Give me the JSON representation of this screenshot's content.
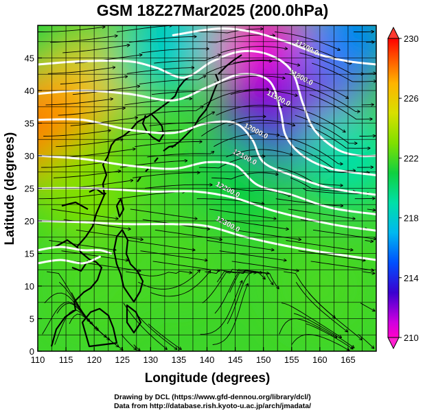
{
  "title": "GSM 18Z27Mar2025 (200.0hPa)",
  "xlabel": "Longitude (degrees)",
  "ylabel": "Latitude (degrees)",
  "footer": {
    "line1": "Drawing by DCL (https://www.gfd-dennou.org/library/dcl/)",
    "line2": "Data from http://database.rish.kyoto-u.ac.jp/arch/jmadata/"
  },
  "chart_data": {
    "type": "heatmap",
    "xlim": [
      110,
      170
    ],
    "ylim": [
      0,
      50
    ],
    "x_ticks": [
      "110",
      "115",
      "120",
      "125",
      "130",
      "135",
      "140",
      "145",
      "150",
      "155",
      "160",
      "165"
    ],
    "y_ticks": [
      "0",
      "5",
      "10",
      "15",
      "20",
      "25",
      "30",
      "35",
      "40",
      "45"
    ],
    "colorbar": {
      "min": 210,
      "max": 230,
      "tick_labels": [
        "210",
        "214",
        "218",
        "222",
        "226",
        "230"
      ],
      "stops": [
        {
          "value": 210,
          "color": "#ff00c8"
        },
        {
          "value": 211,
          "color": "#d000e0"
        },
        {
          "value": 213,
          "color": "#3a00d0"
        },
        {
          "value": 215,
          "color": "#0050ff"
        },
        {
          "value": 217,
          "color": "#00b8f0"
        },
        {
          "value": 219,
          "color": "#00e0a8"
        },
        {
          "value": 221,
          "color": "#10d040"
        },
        {
          "value": 223,
          "color": "#80e000"
        },
        {
          "value": 225,
          "color": "#d8e000"
        },
        {
          "value": 227,
          "color": "#ffb400"
        },
        {
          "value": 229,
          "color": "#ff4000"
        },
        {
          "value": 230,
          "color": "#ff0000"
        }
      ]
    },
    "temperature_cells": [
      {
        "lon": 112,
        "lat": 46,
        "value": 221
      },
      {
        "lon": 122,
        "lat": 42,
        "value": 226
      },
      {
        "lon": 112,
        "lat": 36,
        "value": 227
      },
      {
        "lon": 110,
        "lat": 33,
        "value": 228
      },
      {
        "lon": 130,
        "lat": 45,
        "value": 220
      },
      {
        "lon": 135,
        "lat": 48,
        "value": 218
      },
      {
        "lon": 150,
        "lat": 46,
        "value": 210
      },
      {
        "lon": 152,
        "lat": 38,
        "value": 211
      },
      {
        "lon": 150,
        "lat": 33,
        "value": 213
      },
      {
        "lon": 160,
        "lat": 40,
        "value": 212
      },
      {
        "lon": 165,
        "lat": 30,
        "value": 219
      },
      {
        "lon": 145,
        "lat": 25,
        "value": 221
      },
      {
        "lon": 135,
        "lat": 15,
        "value": 222
      },
      {
        "lon": 120,
        "lat": 10,
        "value": 222
      },
      {
        "lon": 160,
        "lat": 10,
        "value": 222
      },
      {
        "lon": 165,
        "lat": 48,
        "value": 216
      },
      {
        "lon": 118,
        "lat": 25,
        "value": 223
      }
    ],
    "contours": [
      {
        "label": "11700.0",
        "label_lon": 157.5,
        "label_lat": 46.3,
        "points": [
          [
            134,
            48.5
          ],
          [
            142,
            49.5
          ],
          [
            148,
            49
          ],
          [
            154,
            47.5
          ],
          [
            160,
            45.5
          ],
          [
            165,
            44.5
          ],
          [
            170,
            44
          ]
        ]
      },
      {
        "label": "11800.0",
        "label_lon": 156.5,
        "label_lat": 41.7,
        "points": [
          [
            110,
            44
          ],
          [
            118,
            44.5
          ],
          [
            126,
            44.5
          ],
          [
            131,
            43.5
          ],
          [
            136,
            42
          ],
          [
            141,
            44.5
          ],
          [
            146,
            46
          ],
          [
            151,
            45.5
          ],
          [
            155,
            43
          ],
          [
            157,
            38
          ],
          [
            159,
            34
          ],
          [
            163,
            31
          ],
          [
            167,
            30
          ],
          [
            170,
            30
          ]
        ]
      },
      {
        "label": "11900.0",
        "label_lon": 152.5,
        "label_lat": 38.5,
        "points": [
          [
            110,
            39.5
          ],
          [
            118,
            40
          ],
          [
            126,
            39.5
          ],
          [
            134,
            38.5
          ],
          [
            140,
            40.5
          ],
          [
            146,
            42.5
          ],
          [
            151,
            41.5
          ],
          [
            153,
            37
          ],
          [
            154,
            33
          ],
          [
            157,
            30
          ],
          [
            162,
            28
          ],
          [
            170,
            27
          ]
        ]
      },
      {
        "label": "12000.0",
        "label_lon": 148.5,
        "label_lat": 33.5,
        "points": [
          [
            110,
            35.5
          ],
          [
            118,
            35.5
          ],
          [
            126,
            34
          ],
          [
            134,
            33.5
          ],
          [
            140,
            35
          ],
          [
            145,
            35
          ],
          [
            148,
            32.5
          ],
          [
            150,
            29
          ],
          [
            155,
            27
          ],
          [
            162,
            25
          ],
          [
            170,
            24
          ]
        ]
      },
      {
        "label": "12100.0",
        "label_lon": 146.5,
        "label_lat": 29.5,
        "points": [
          [
            110,
            30
          ],
          [
            118,
            29.5
          ],
          [
            126,
            28.5
          ],
          [
            134,
            28
          ],
          [
            140,
            29
          ],
          [
            145,
            28.5
          ],
          [
            149,
            25.5
          ],
          [
            155,
            24
          ],
          [
            162,
            22
          ],
          [
            170,
            21
          ]
        ]
      },
      {
        "label": "12200.0",
        "label_lon": 143.5,
        "label_lat": 24.5,
        "points": [
          [
            110,
            25
          ],
          [
            120,
            25
          ],
          [
            130,
            24.5
          ],
          [
            138,
            24.5
          ],
          [
            145,
            23.5
          ],
          [
            152,
            21.5
          ],
          [
            162,
            19.5
          ],
          [
            170,
            18.5
          ]
        ]
      },
      {
        "label": "12300.0",
        "label_lon": 143.5,
        "label_lat": 19.2,
        "points": [
          [
            110,
            20
          ],
          [
            118,
            19.8
          ],
          [
            126,
            19.5
          ],
          [
            134,
            19.5
          ],
          [
            140,
            19.2
          ],
          [
            147,
            17.5
          ],
          [
            155,
            16
          ],
          [
            162,
            15
          ],
          [
            170,
            14
          ]
        ]
      },
      {
        "label": "",
        "label_lon": 0,
        "label_lat": 0,
        "points": [
          [
            110,
            15.5
          ],
          [
            114,
            16
          ],
          [
            118,
            15.5
          ],
          [
            121,
            15.5
          ],
          [
            123,
            15
          ]
        ]
      },
      {
        "label": "",
        "label_lon": 0,
        "label_lat": 0,
        "points": [
          [
            110,
            13.5
          ],
          [
            114,
            14
          ],
          [
            118,
            13.5
          ],
          [
            121,
            14.5
          ]
        ]
      }
    ]
  }
}
